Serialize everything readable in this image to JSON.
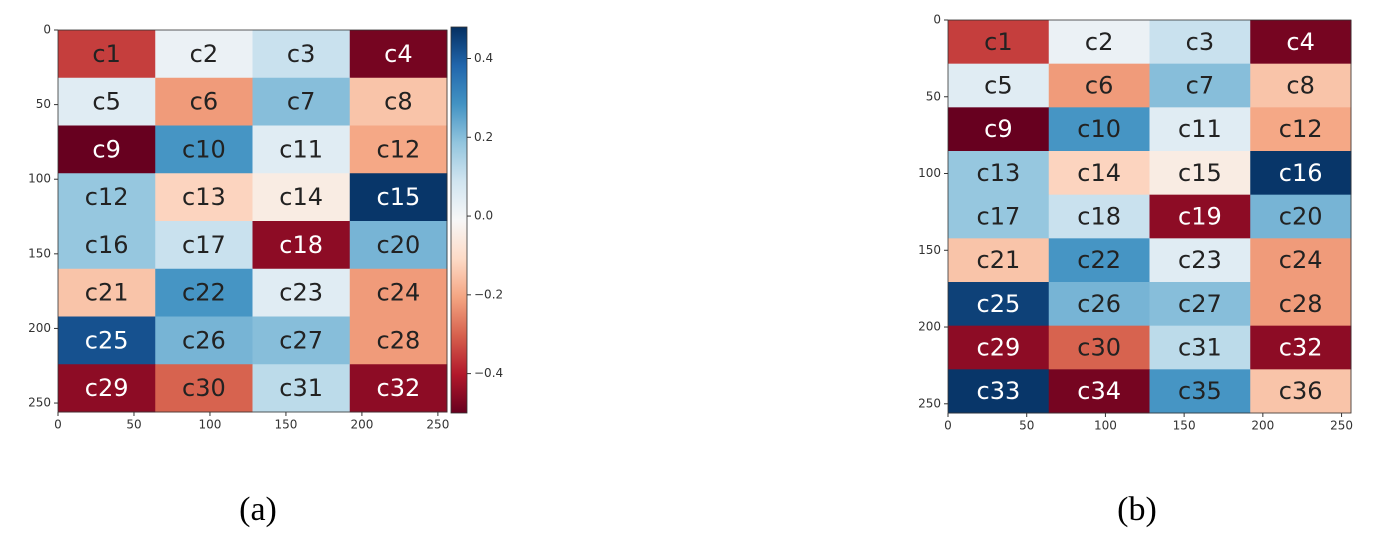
{
  "chart_data": [
    {
      "type": "heatmap",
      "caption": "(a)",
      "colormap": "RdBu",
      "y_inverted": true,
      "xlim": [
        0,
        256
      ],
      "ylim": [
        0,
        256
      ],
      "xticks": [
        0,
        50,
        100,
        150,
        200,
        250
      ],
      "yticks": [
        0,
        50,
        100,
        150,
        200,
        250
      ],
      "clim": [
        -0.5,
        0.48
      ],
      "colorbar_ticks": [
        {
          "value": -0.4,
          "label": "−0.4"
        },
        {
          "value": -0.2,
          "label": "−0.2"
        },
        {
          "value": 0,
          "label": "0.0"
        },
        0.2,
        0.4
      ],
      "cell_labels": [
        [
          "c1",
          "c2",
          "c3",
          "c4"
        ],
        [
          "c5",
          "c6",
          "c7",
          "c8"
        ],
        [
          "c9",
          "c10",
          "c11",
          "c12"
        ],
        [
          "c12",
          "c13",
          "c14",
          "c15"
        ],
        [
          "c16",
          "c17",
          "c18",
          "c20"
        ],
        [
          "c21",
          "c22",
          "c23",
          "c24"
        ],
        [
          "c25",
          "c26",
          "c27",
          "c28"
        ],
        [
          "c29",
          "c30",
          "c31",
          "c32"
        ]
      ],
      "values": [
        [
          -0.35,
          0.02,
          0.1,
          -0.48
        ],
        [
          0.05,
          -0.22,
          0.2,
          -0.15
        ],
        [
          -0.5,
          0.28,
          0.05,
          -0.2
        ],
        [
          0.18,
          -0.12,
          -0.05,
          0.47
        ],
        [
          0.18,
          0.1,
          -0.45,
          0.22
        ],
        [
          -0.15,
          0.28,
          0.05,
          -0.22
        ],
        [
          0.42,
          0.22,
          0.2,
          -0.22
        ],
        [
          -0.45,
          -0.3,
          0.12,
          -0.45
        ]
      ]
    },
    {
      "type": "heatmap",
      "caption": "(b)",
      "colormap": "RdBu",
      "y_inverted": true,
      "xlim": [
        0,
        256
      ],
      "ylim": [
        0,
        256
      ],
      "xticks": [
        0,
        50,
        100,
        150,
        200,
        250
      ],
      "yticks": [
        0,
        50,
        100,
        150,
        200,
        250
      ],
      "clim": [
        -0.5,
        0.48
      ],
      "cell_labels": [
        [
          "c1",
          "c2",
          "c3",
          "c4"
        ],
        [
          "c5",
          "c6",
          "c7",
          "c8"
        ],
        [
          "c9",
          "c10",
          "c11",
          "c12"
        ],
        [
          "c13",
          "c14",
          "c15",
          "c16"
        ],
        [
          "c17",
          "c18",
          "c19",
          "c20"
        ],
        [
          "c21",
          "c22",
          "c23",
          "c24"
        ],
        [
          "c25",
          "c26",
          "c27",
          "c28"
        ],
        [
          "c29",
          "c30",
          "c31",
          "c32"
        ],
        [
          "c33",
          "c34",
          "c35",
          "c36"
        ]
      ],
      "values": [
        [
          -0.35,
          0.02,
          0.1,
          -0.48
        ],
        [
          0.05,
          -0.22,
          0.2,
          -0.15
        ],
        [
          -0.5,
          0.28,
          0.05,
          -0.2
        ],
        [
          0.18,
          -0.12,
          -0.05,
          0.47
        ],
        [
          0.18,
          0.1,
          -0.45,
          0.22
        ],
        [
          -0.15,
          0.28,
          0.05,
          -0.22
        ],
        [
          0.45,
          0.22,
          0.2,
          -0.22
        ],
        [
          -0.45,
          -0.3,
          0.12,
          -0.45
        ],
        [
          0.47,
          -0.48,
          0.28,
          -0.15
        ]
      ]
    }
  ]
}
